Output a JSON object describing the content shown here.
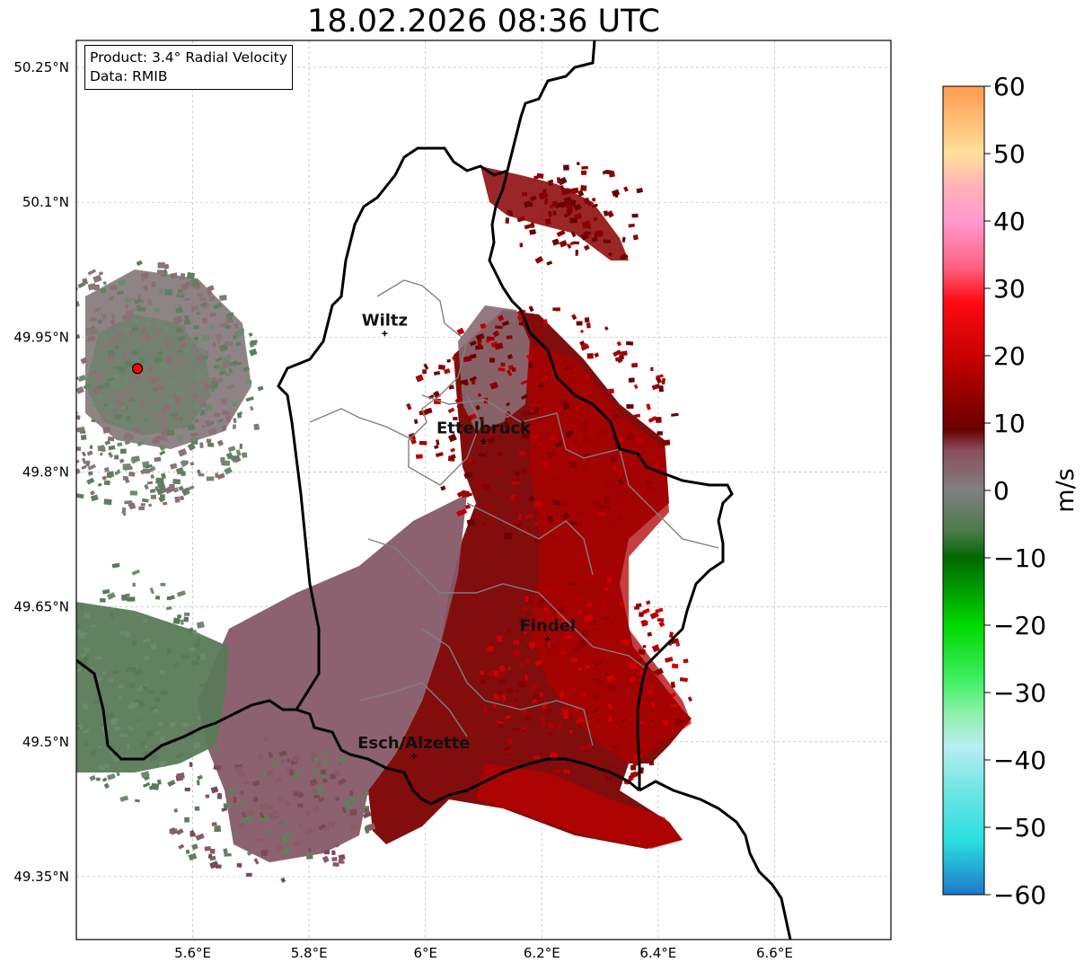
{
  "title": "18.02.2026 08:36 UTC",
  "info": {
    "product": "Product: 3.4° Radial Velocity",
    "data": "Data: RMIB"
  },
  "map": {
    "lat_range": [
      49.28,
      50.28
    ],
    "lon_range": [
      5.4,
      6.8
    ],
    "lat_ticks": [
      {
        "value": 50.25,
        "label": "50.25°N"
      },
      {
        "value": 50.1,
        "label": "50.1°N"
      },
      {
        "value": 49.95,
        "label": "49.95°N"
      },
      {
        "value": 49.8,
        "label": "49.8°N"
      },
      {
        "value": 49.65,
        "label": "49.65°N"
      },
      {
        "value": 49.5,
        "label": "49.5°N"
      },
      {
        "value": 49.35,
        "label": "49.35°N"
      }
    ],
    "lon_ticks": [
      {
        "value": 5.6,
        "label": "5.6°E"
      },
      {
        "value": 5.8,
        "label": "5.8°E"
      },
      {
        "value": 6.0,
        "label": "6°E"
      },
      {
        "value": 6.2,
        "label": "6.2°E"
      },
      {
        "value": 6.4,
        "label": "6.4°E"
      },
      {
        "value": 6.6,
        "label": "6.6°E"
      }
    ],
    "grid": true,
    "radar_site": {
      "lon": 5.505,
      "lat": 49.915
    },
    "cities": [
      {
        "name": "Wiltz",
        "lon": 5.93,
        "lat": 49.97
      },
      {
        "name": "Ettelbruck",
        "lon": 6.1,
        "lat": 49.85
      },
      {
        "name": "Findel",
        "lon": 6.21,
        "lat": 49.63
      },
      {
        "name": "Esch/Alzette",
        "lon": 5.98,
        "lat": 49.5
      }
    ]
  },
  "colorbar": {
    "unit": "m/s",
    "min": -60,
    "max": 60,
    "ticks": [
      {
        "value": 60,
        "label": "60"
      },
      {
        "value": 50,
        "label": "50"
      },
      {
        "value": 40,
        "label": "40"
      },
      {
        "value": 30,
        "label": "30"
      },
      {
        "value": 20,
        "label": "20"
      },
      {
        "value": 10,
        "label": "10"
      },
      {
        "value": 0,
        "label": "0"
      },
      {
        "value": -10,
        "label": "−10"
      },
      {
        "value": -20,
        "label": "−20"
      },
      {
        "value": -30,
        "label": "−30"
      },
      {
        "value": -40,
        "label": "−40"
      },
      {
        "value": -50,
        "label": "−50"
      },
      {
        "value": -60,
        "label": "−60"
      }
    ],
    "color_stops": [
      {
        "value": -60,
        "color": "#1f78c8"
      },
      {
        "value": -52,
        "color": "#2adfe0"
      },
      {
        "value": -45,
        "color": "#6ae4e4"
      },
      {
        "value": -38,
        "color": "#b8eef0"
      },
      {
        "value": -33,
        "color": "#8cf0a8"
      },
      {
        "value": -28,
        "color": "#3cf060"
      },
      {
        "value": -20,
        "color": "#00d800"
      },
      {
        "value": -10,
        "color": "#006800"
      },
      {
        "value": -6,
        "color": "#4c7a4c"
      },
      {
        "value": 0,
        "color": "#808080"
      },
      {
        "value": 6,
        "color": "#8a4d5c"
      },
      {
        "value": 9,
        "color": "#6a0000"
      },
      {
        "value": 20,
        "color": "#c80000"
      },
      {
        "value": 28,
        "color": "#ff0a10"
      },
      {
        "value": 33,
        "color": "#ff6080"
      },
      {
        "value": 40,
        "color": "#ff9ad0"
      },
      {
        "value": 45,
        "color": "#ffb0b8"
      },
      {
        "value": 50,
        "color": "#ffe09a"
      },
      {
        "value": 60,
        "color": "#ff9a50"
      }
    ]
  }
}
